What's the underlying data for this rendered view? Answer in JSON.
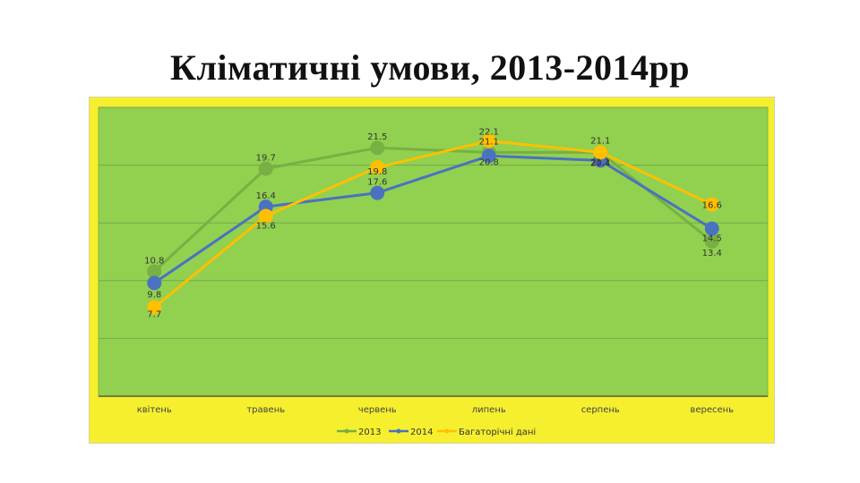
{
  "slide": {
    "title": "Кліматичні умови, 2013-2014рр"
  },
  "chart_data": {
    "type": "line",
    "title": "",
    "xlabel": "",
    "ylabel": "",
    "categories": [
      "квітень",
      "травень",
      "червень",
      "липень",
      "серпень",
      "вересень"
    ],
    "series": [
      {
        "name": "2013",
        "values": [
          10.8,
          19.7,
          21.5,
          21.1,
          21.1,
          13.4
        ],
        "color": "#77b043"
      },
      {
        "name": "2014",
        "values": [
          9.8,
          16.4,
          17.6,
          20.8,
          20.4,
          14.5
        ],
        "color": "#4a72c0"
      },
      {
        "name": "Багаторічні дані",
        "values": [
          7.7,
          15.6,
          19.8,
          22.1,
          21.1,
          16.6
        ],
        "color": "#ffc000"
      }
    ],
    "ylim": [
      0,
      25
    ],
    "y_tick_step": 5,
    "y_ticks_visible": false,
    "grid": true,
    "legend_position": "bottom",
    "plot_background": "#92d050",
    "frame_background": "#f5ef2e"
  }
}
